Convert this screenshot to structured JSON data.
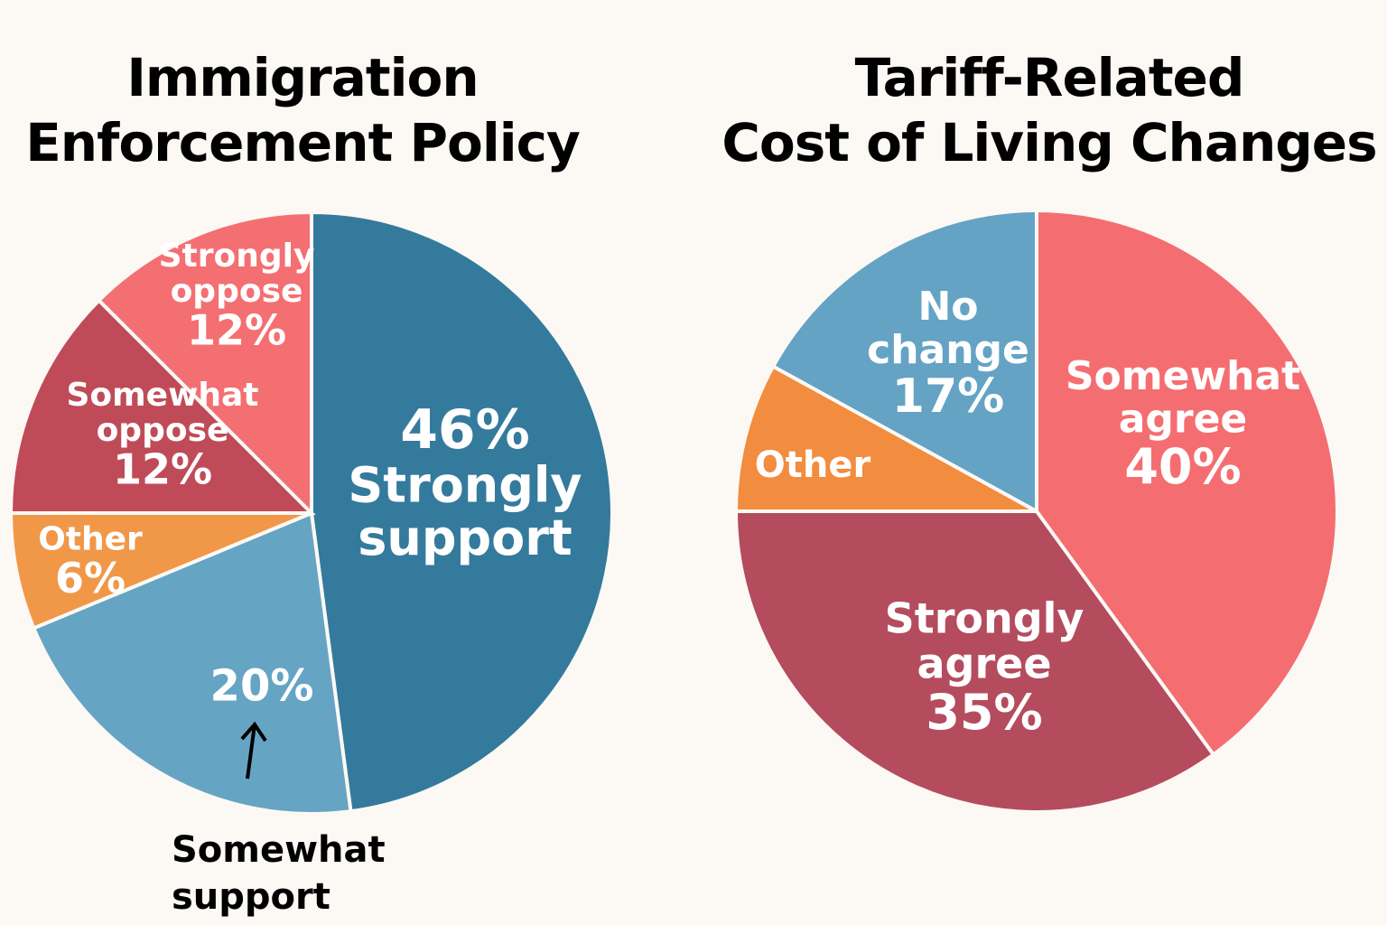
{
  "background": "#fcf9f5",
  "chart_data": [
    {
      "type": "pie",
      "title_lines": [
        "Immigration",
        "Enforcement Policy"
      ],
      "start": "top",
      "direction": "clockwise",
      "slices": [
        {
          "label": [
            "Strongly",
            "support"
          ],
          "value": 46,
          "value_text": "46%",
          "color": "#347a9c"
        },
        {
          "label": [
            "Somewhat",
            "support"
          ],
          "value": 20,
          "value_text": "20%",
          "color": "#66a4c4",
          "label_outside": true
        },
        {
          "label": [
            "Other"
          ],
          "value": 6,
          "value_text": "6%",
          "color": "#f09848"
        },
        {
          "label": [
            "Somewhat",
            "oppose"
          ],
          "value": 12,
          "value_text": "12%",
          "color": "#c04b58"
        },
        {
          "label": [
            "Strongly",
            "oppose"
          ],
          "value": 12,
          "value_text": "12%",
          "color": "#f46f72"
        }
      ]
    },
    {
      "type": "pie",
      "title_lines": [
        "Tariff-Related",
        "Cost of Living Changes"
      ],
      "start": "top",
      "direction": "clockwise",
      "slices": [
        {
          "label": [
            "Somewhat",
            "agree"
          ],
          "value": 40,
          "value_text": "40%",
          "color": "#f46e71"
        },
        {
          "label": [
            "Strongly",
            "agree"
          ],
          "value": 35,
          "value_text": "35%",
          "color": "#b44c5e"
        },
        {
          "label": [
            "Other"
          ],
          "value": null,
          "value_text": "",
          "color": "#f28c3e"
        },
        {
          "label": [
            "No",
            "change"
          ],
          "value": 17,
          "value_text": "17%",
          "color": "#64a3c4"
        }
      ]
    }
  ]
}
